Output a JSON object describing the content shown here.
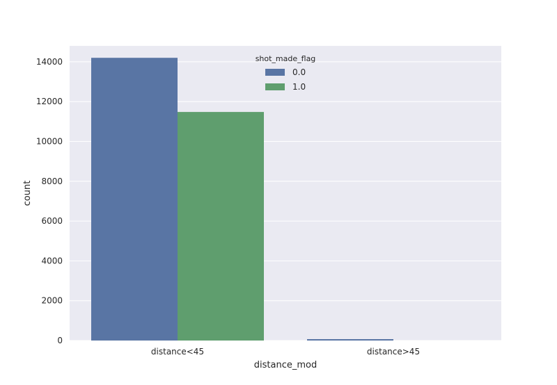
{
  "chart_data": {
    "type": "bar",
    "categories": [
      "distance<45",
      "distance>45"
    ],
    "series": [
      {
        "name": "0.0",
        "values": [
          14200,
          70
        ],
        "color": "#5975a4"
      },
      {
        "name": "1.0",
        "values": [
          11480,
          0
        ],
        "color": "#5f9e6e"
      }
    ],
    "xlabel": "distance_mod",
    "ylabel": "count",
    "ylim": [
      0,
      14800
    ],
    "yticks": [
      0,
      2000,
      4000,
      6000,
      8000,
      10000,
      12000,
      14000
    ],
    "ytick_labels": [
      "0",
      "2000",
      "4000",
      "6000",
      "8000",
      "10000",
      "12000",
      "14000"
    ],
    "legend_title": "shot_made_flag",
    "legend_position": "top-center",
    "grid": true,
    "plot_background": "#eaeaf2",
    "grid_color": "#ffffff"
  }
}
